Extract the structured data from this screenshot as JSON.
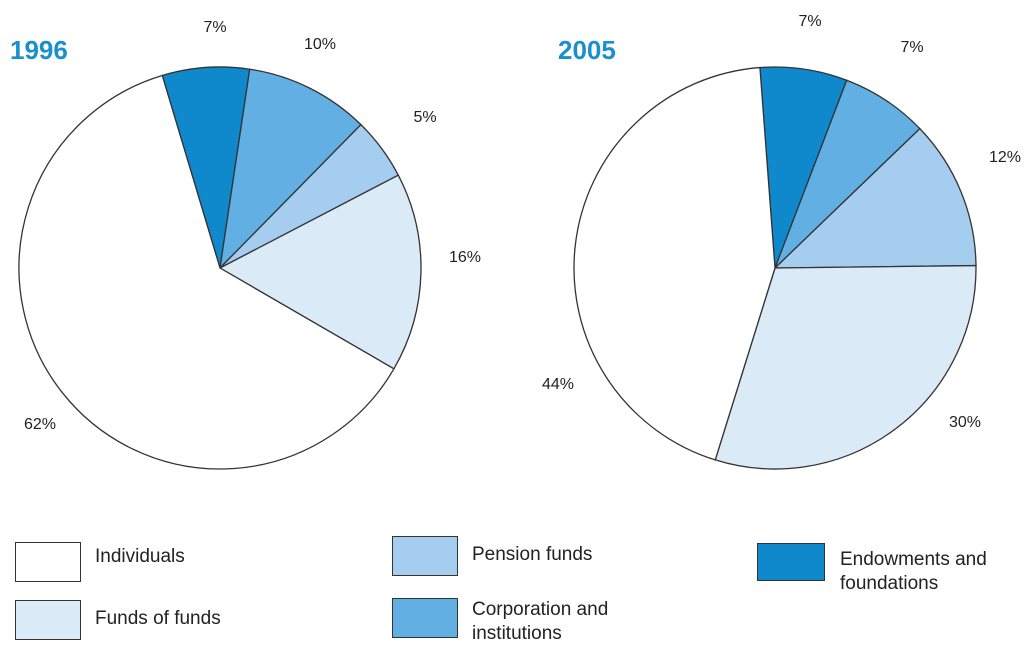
{
  "chart_data": [
    {
      "type": "pie",
      "title": "1996",
      "values": [
        62,
        16,
        5,
        10,
        7
      ],
      "value_labels": [
        "62%",
        "16%",
        "5%",
        "10%",
        "7%"
      ]
    },
    {
      "type": "pie",
      "title": "2005",
      "values": [
        44,
        30,
        12,
        7,
        7
      ],
      "value_labels": [
        "44%",
        "30%",
        "12%",
        "7%",
        "7%"
      ]
    }
  ],
  "legend": {
    "categories": [
      "Individuals",
      "Funds of funds",
      "Pension funds",
      "Corporation and institutions",
      "Endowments and foundations"
    ],
    "colors": [
      "#ffffff",
      "#daeaf7",
      "#a5cdef",
      "#62b0e3",
      "#0f88cc"
    ]
  }
}
